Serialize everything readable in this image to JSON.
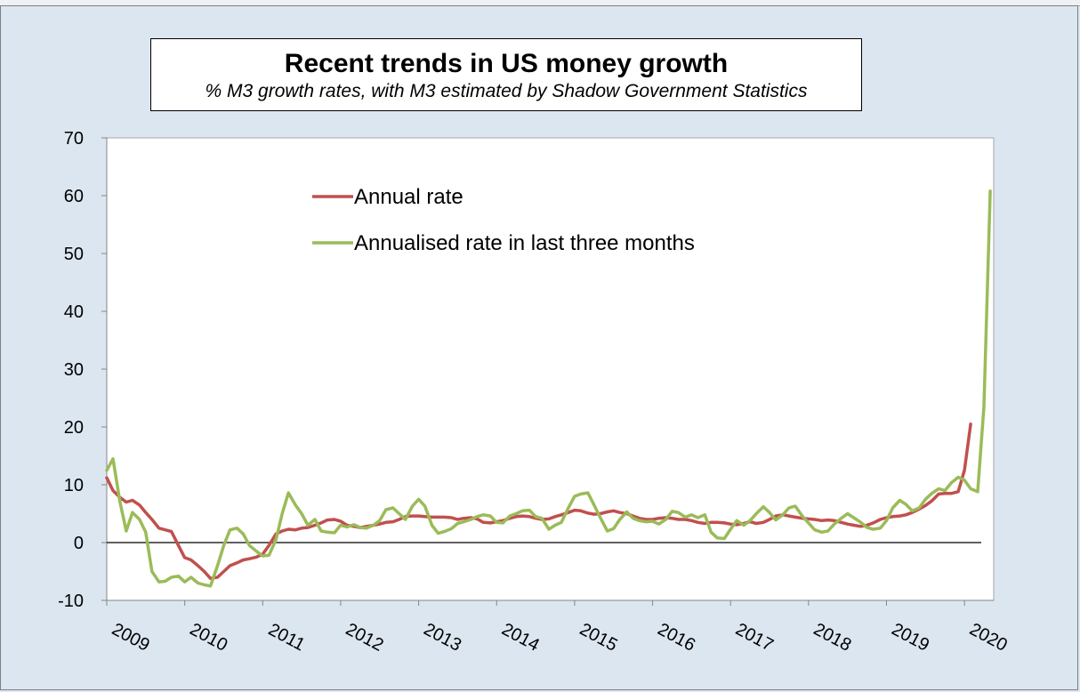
{
  "chart_data": {
    "type": "line",
    "title": "Recent trends in US money growth",
    "subtitle": "% M3 growth rates, with M3 estimated by Shadow Government Statistics",
    "xlabel": "",
    "ylabel": "",
    "ylim": [
      -10,
      70
    ],
    "yticks": [
      -10,
      0,
      10,
      20,
      30,
      40,
      50,
      60,
      70
    ],
    "xlim": [
      2009.0,
      2020.25
    ],
    "xtick_labels": [
      "2009",
      "2010",
      "2011",
      "2012",
      "2013",
      "2014",
      "2015",
      "2016",
      "2017",
      "2018",
      "2019",
      "2020"
    ],
    "grid": false,
    "zero_line": true,
    "legend_position": "upper-left inside plot",
    "series": [
      {
        "name": "Annual rate",
        "color": "#c0504d",
        "points": [
          [
            2009.0,
            11.2
          ],
          [
            2009.08,
            9
          ],
          [
            2009.17,
            7.8
          ],
          [
            2009.25,
            7
          ],
          [
            2009.33,
            7.3
          ],
          [
            2009.42,
            6.5
          ],
          [
            2009.5,
            5.2
          ],
          [
            2009.58,
            4
          ],
          [
            2009.67,
            2.5
          ],
          [
            2009.75,
            2.2
          ],
          [
            2009.83,
            1.9
          ],
          [
            2009.92,
            -0.5
          ],
          [
            2010.0,
            -2.6
          ],
          [
            2010.08,
            -3
          ],
          [
            2010.17,
            -4
          ],
          [
            2010.25,
            -5
          ],
          [
            2010.33,
            -6.2
          ],
          [
            2010.42,
            -6
          ],
          [
            2010.5,
            -5
          ],
          [
            2010.58,
            -4
          ],
          [
            2010.67,
            -3.5
          ],
          [
            2010.75,
            -3
          ],
          [
            2010.83,
            -2.8
          ],
          [
            2010.92,
            -2.5
          ],
          [
            2011.0,
            -2
          ],
          [
            2011.08,
            -0.5
          ],
          [
            2011.17,
            1.5
          ],
          [
            2011.25,
            2
          ],
          [
            2011.33,
            2.3
          ],
          [
            2011.42,
            2.2
          ],
          [
            2011.5,
            2.5
          ],
          [
            2011.58,
            2.6
          ],
          [
            2011.67,
            3
          ],
          [
            2011.75,
            3.4
          ],
          [
            2011.83,
            3.9
          ],
          [
            2011.92,
            4
          ],
          [
            2012.0,
            3.7
          ],
          [
            2012.08,
            3
          ],
          [
            2012.17,
            2.8
          ],
          [
            2012.25,
            2.6
          ],
          [
            2012.33,
            2.8
          ],
          [
            2012.42,
            3
          ],
          [
            2012.5,
            3.2
          ],
          [
            2012.58,
            3.5
          ],
          [
            2012.67,
            3.6
          ],
          [
            2012.75,
            4
          ],
          [
            2012.83,
            4.5
          ],
          [
            2012.92,
            4.6
          ],
          [
            2013.0,
            4.6
          ],
          [
            2013.08,
            4.5
          ],
          [
            2013.17,
            4.4
          ],
          [
            2013.25,
            4.4
          ],
          [
            2013.33,
            4.4
          ],
          [
            2013.42,
            4.3
          ],
          [
            2013.5,
            4
          ],
          [
            2013.58,
            4.2
          ],
          [
            2013.67,
            4.3
          ],
          [
            2013.75,
            4.1
          ],
          [
            2013.83,
            3.5
          ],
          [
            2013.92,
            3.4
          ],
          [
            2014.0,
            3.6
          ],
          [
            2014.08,
            3.8
          ],
          [
            2014.17,
            4.2
          ],
          [
            2014.25,
            4.5
          ],
          [
            2014.33,
            4.6
          ],
          [
            2014.42,
            4.5
          ],
          [
            2014.5,
            4.2
          ],
          [
            2014.58,
            4
          ],
          [
            2014.67,
            4.1
          ],
          [
            2014.75,
            4.5
          ],
          [
            2014.83,
            4.8
          ],
          [
            2014.92,
            5.2
          ],
          [
            2015.0,
            5.6
          ],
          [
            2015.08,
            5.5
          ],
          [
            2015.17,
            5.1
          ],
          [
            2015.25,
            4.9
          ],
          [
            2015.33,
            5
          ],
          [
            2015.42,
            5.3
          ],
          [
            2015.5,
            5.5
          ],
          [
            2015.58,
            5.2
          ],
          [
            2015.67,
            5
          ],
          [
            2015.75,
            4.6
          ],
          [
            2015.83,
            4.2
          ],
          [
            2015.92,
            4
          ],
          [
            2016.0,
            4
          ],
          [
            2016.08,
            4.2
          ],
          [
            2016.17,
            4.3
          ],
          [
            2016.25,
            4.2
          ],
          [
            2016.33,
            4
          ],
          [
            2016.42,
            4
          ],
          [
            2016.5,
            3.8
          ],
          [
            2016.58,
            3.5
          ],
          [
            2016.67,
            3.3
          ],
          [
            2016.75,
            3.5
          ],
          [
            2016.83,
            3.5
          ],
          [
            2016.92,
            3.4
          ],
          [
            2017.0,
            3.2
          ],
          [
            2017.08,
            3.1
          ],
          [
            2017.17,
            3.3
          ],
          [
            2017.25,
            3.6
          ],
          [
            2017.33,
            3.3
          ],
          [
            2017.42,
            3.5
          ],
          [
            2017.5,
            4
          ],
          [
            2017.58,
            4.6
          ],
          [
            2017.67,
            4.8
          ],
          [
            2017.75,
            4.6
          ],
          [
            2017.83,
            4.4
          ],
          [
            2017.92,
            4.2
          ],
          [
            2018.0,
            4.1
          ],
          [
            2018.08,
            4
          ],
          [
            2018.17,
            3.8
          ],
          [
            2018.25,
            3.9
          ],
          [
            2018.33,
            3.8
          ],
          [
            2018.42,
            3.5
          ],
          [
            2018.5,
            3.2
          ],
          [
            2018.58,
            3
          ],
          [
            2018.67,
            2.8
          ],
          [
            2018.75,
            3
          ],
          [
            2018.83,
            3.4
          ],
          [
            2018.92,
            4
          ],
          [
            2019.0,
            4.3
          ],
          [
            2019.08,
            4.5
          ],
          [
            2019.17,
            4.6
          ],
          [
            2019.25,
            4.8
          ],
          [
            2019.33,
            5.2
          ],
          [
            2019.42,
            5.8
          ],
          [
            2019.5,
            6.4
          ],
          [
            2019.58,
            7.2
          ],
          [
            2019.67,
            8.4
          ],
          [
            2019.75,
            8.5
          ],
          [
            2019.83,
            8.5
          ],
          [
            2019.92,
            8.8
          ],
          [
            2020.0,
            12.5
          ],
          [
            2020.08,
            20.5
          ]
        ]
      },
      {
        "name": "Annualised rate in last three months",
        "color": "#9bbb59",
        "points": [
          [
            2009.0,
            12.5
          ],
          [
            2009.08,
            14.5
          ],
          [
            2009.17,
            7
          ],
          [
            2009.25,
            2
          ],
          [
            2009.33,
            5.2
          ],
          [
            2009.42,
            4
          ],
          [
            2009.5,
            1.8
          ],
          [
            2009.58,
            -5
          ],
          [
            2009.67,
            -6.8
          ],
          [
            2009.75,
            -6.7
          ],
          [
            2009.83,
            -6
          ],
          [
            2009.92,
            -5.8
          ],
          [
            2010.0,
            -6.8
          ],
          [
            2010.08,
            -6
          ],
          [
            2010.17,
            -7
          ],
          [
            2010.25,
            -7.3
          ],
          [
            2010.33,
            -7.5
          ],
          [
            2010.42,
            -4
          ],
          [
            2010.5,
            -0.5
          ],
          [
            2010.58,
            2.2
          ],
          [
            2010.67,
            2.5
          ],
          [
            2010.75,
            1.5
          ],
          [
            2010.83,
            -0.5
          ],
          [
            2010.92,
            -1.5
          ],
          [
            2011.0,
            -2.3
          ],
          [
            2011.08,
            -2.2
          ],
          [
            2011.17,
            0.5
          ],
          [
            2011.25,
            5
          ],
          [
            2011.33,
            8.6
          ],
          [
            2011.42,
            6.5
          ],
          [
            2011.5,
            5
          ],
          [
            2011.58,
            3
          ],
          [
            2011.67,
            4
          ],
          [
            2011.75,
            2
          ],
          [
            2011.83,
            1.8
          ],
          [
            2011.92,
            1.7
          ],
          [
            2012.0,
            3
          ],
          [
            2012.08,
            2.7
          ],
          [
            2012.17,
            3.1
          ],
          [
            2012.25,
            2.6
          ],
          [
            2012.33,
            2.5
          ],
          [
            2012.42,
            3
          ],
          [
            2012.5,
            3.8
          ],
          [
            2012.58,
            5.7
          ],
          [
            2012.67,
            6
          ],
          [
            2012.75,
            5
          ],
          [
            2012.83,
            4
          ],
          [
            2012.92,
            6.3
          ],
          [
            2013.0,
            7.5
          ],
          [
            2013.08,
            6.3
          ],
          [
            2013.17,
            3
          ],
          [
            2013.25,
            1.6
          ],
          [
            2013.33,
            1.9
          ],
          [
            2013.42,
            2.4
          ],
          [
            2013.5,
            3.3
          ],
          [
            2013.58,
            3.6
          ],
          [
            2013.67,
            4
          ],
          [
            2013.75,
            4.5
          ],
          [
            2013.83,
            4.8
          ],
          [
            2013.92,
            4.6
          ],
          [
            2014.0,
            3.5
          ],
          [
            2014.08,
            3.4
          ],
          [
            2014.17,
            4.6
          ],
          [
            2014.25,
            5
          ],
          [
            2014.33,
            5.5
          ],
          [
            2014.42,
            5.6
          ],
          [
            2014.5,
            4.5
          ],
          [
            2014.58,
            4.2
          ],
          [
            2014.67,
            2.3
          ],
          [
            2014.75,
            3
          ],
          [
            2014.83,
            3.5
          ],
          [
            2014.92,
            6
          ],
          [
            2015.0,
            8
          ],
          [
            2015.08,
            8.4
          ],
          [
            2015.17,
            8.6
          ],
          [
            2015.25,
            6.5
          ],
          [
            2015.33,
            4.3
          ],
          [
            2015.42,
            2
          ],
          [
            2015.5,
            2.4
          ],
          [
            2015.58,
            4
          ],
          [
            2015.67,
            5.3
          ],
          [
            2015.75,
            4.2
          ],
          [
            2015.83,
            3.8
          ],
          [
            2015.92,
            3.6
          ],
          [
            2016.0,
            3.7
          ],
          [
            2016.08,
            3.2
          ],
          [
            2016.17,
            4
          ],
          [
            2016.25,
            5.4
          ],
          [
            2016.33,
            5.2
          ],
          [
            2016.42,
            4.4
          ],
          [
            2016.5,
            4.8
          ],
          [
            2016.58,
            4.3
          ],
          [
            2016.67,
            4.8
          ],
          [
            2016.75,
            1.8
          ],
          [
            2016.83,
            0.8
          ],
          [
            2016.92,
            0.7
          ],
          [
            2017.0,
            2.3
          ],
          [
            2017.08,
            3.8
          ],
          [
            2017.17,
            3
          ],
          [
            2017.25,
            3.8
          ],
          [
            2017.33,
            5
          ],
          [
            2017.42,
            6.2
          ],
          [
            2017.5,
            5.2
          ],
          [
            2017.58,
            3.9
          ],
          [
            2017.67,
            4.8
          ],
          [
            2017.75,
            6
          ],
          [
            2017.83,
            6.3
          ],
          [
            2017.92,
            4.6
          ],
          [
            2018.0,
            3.4
          ],
          [
            2018.08,
            2.2
          ],
          [
            2018.17,
            1.8
          ],
          [
            2018.25,
            2
          ],
          [
            2018.33,
            3.2
          ],
          [
            2018.42,
            4.2
          ],
          [
            2018.5,
            5
          ],
          [
            2018.58,
            4.3
          ],
          [
            2018.67,
            3.5
          ],
          [
            2018.75,
            2.6
          ],
          [
            2018.83,
            2.3
          ],
          [
            2018.92,
            2.5
          ],
          [
            2019.0,
            3.8
          ],
          [
            2019.08,
            6
          ],
          [
            2019.17,
            7.3
          ],
          [
            2019.25,
            6.6
          ],
          [
            2019.33,
            5.5
          ],
          [
            2019.42,
            6
          ],
          [
            2019.5,
            7.5
          ],
          [
            2019.58,
            8.5
          ],
          [
            2019.67,
            9.3
          ],
          [
            2019.75,
            9
          ],
          [
            2019.83,
            10.3
          ],
          [
            2019.92,
            11.3
          ],
          [
            2020.0,
            10.8
          ],
          [
            2020.08,
            9.3
          ],
          [
            2020.17,
            8.8
          ],
          [
            2020.25,
            23.5
          ],
          [
            2020.33,
            60.8
          ]
        ]
      }
    ]
  }
}
